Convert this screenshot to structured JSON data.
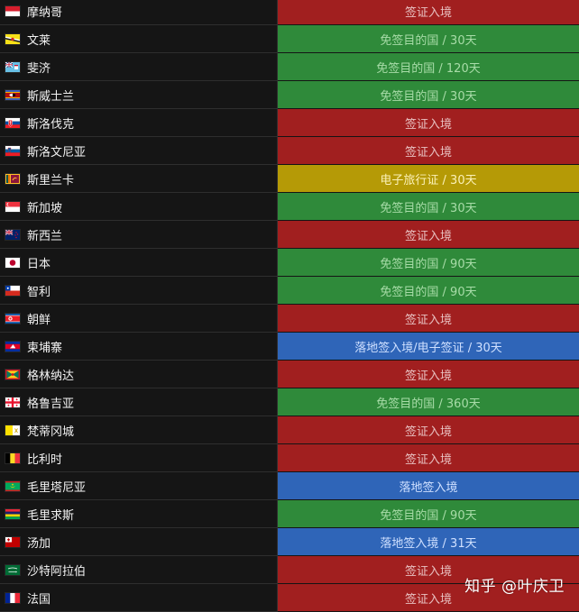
{
  "rows": [
    {
      "country": "摩纳哥",
      "status": "签证入境",
      "type": "visa",
      "flag": "monaco-flag"
    },
    {
      "country": "文莱",
      "status": "免签目的国 / 30天",
      "type": "free",
      "flag": "brunei-flag"
    },
    {
      "country": "斐济",
      "status": "免签目的国 / 120天",
      "type": "free",
      "flag": "fiji-flag"
    },
    {
      "country": "斯威士兰",
      "status": "免签目的国 / 30天",
      "type": "free",
      "flag": "eswatini-flag"
    },
    {
      "country": "斯洛伐克",
      "status": "签证入境",
      "type": "visa",
      "flag": "slovakia-flag"
    },
    {
      "country": "斯洛文尼亚",
      "status": "签证入境",
      "type": "visa",
      "flag": "slovenia-flag"
    },
    {
      "country": "斯里兰卡",
      "status": "电子旅行证 / 30天",
      "type": "eta",
      "flag": "sri-lanka-flag"
    },
    {
      "country": "新加坡",
      "status": "免签目的国 / 30天",
      "type": "free",
      "flag": "singapore-flag"
    },
    {
      "country": "新西兰",
      "status": "签证入境",
      "type": "visa",
      "flag": "new-zealand-flag"
    },
    {
      "country": "日本",
      "status": "免签目的国 / 90天",
      "type": "free",
      "flag": "japan-flag"
    },
    {
      "country": "智利",
      "status": "免签目的国 / 90天",
      "type": "free",
      "flag": "chile-flag"
    },
    {
      "country": "朝鲜",
      "status": "签证入境",
      "type": "visa",
      "flag": "north-korea-flag"
    },
    {
      "country": "柬埔寨",
      "status": "落地签入境/电子签证 / 30天",
      "type": "voa",
      "flag": "cambodia-flag"
    },
    {
      "country": "格林纳达",
      "status": "签证入境",
      "type": "visa",
      "flag": "grenada-flag"
    },
    {
      "country": "格鲁吉亚",
      "status": "免签目的国 / 360天",
      "type": "free",
      "flag": "georgia-flag"
    },
    {
      "country": "梵蒂冈城",
      "status": "签证入境",
      "type": "visa",
      "flag": "vatican-flag"
    },
    {
      "country": "比利时",
      "status": "签证入境",
      "type": "visa",
      "flag": "belgium-flag"
    },
    {
      "country": "毛里塔尼亚",
      "status": "落地签入境",
      "type": "voa",
      "flag": "mauritania-flag"
    },
    {
      "country": "毛里求斯",
      "status": "免签目的国 / 90天",
      "type": "free",
      "flag": "mauritius-flag"
    },
    {
      "country": "汤加",
      "status": "落地签入境 / 31天",
      "type": "voa",
      "flag": "tonga-flag"
    },
    {
      "country": "沙特阿拉伯",
      "status": "签证入境",
      "type": "visa",
      "flag": "saudi-arabia-flag"
    },
    {
      "country": "法国",
      "status": "签证入境",
      "type": "visa",
      "flag": "france-flag"
    }
  ],
  "watermark": "知乎 @叶庆卫",
  "colors": {
    "visa": "#a11f1f",
    "free": "#2f8a3a",
    "eta": "#b59a06",
    "voa": "#2f65b8"
  }
}
